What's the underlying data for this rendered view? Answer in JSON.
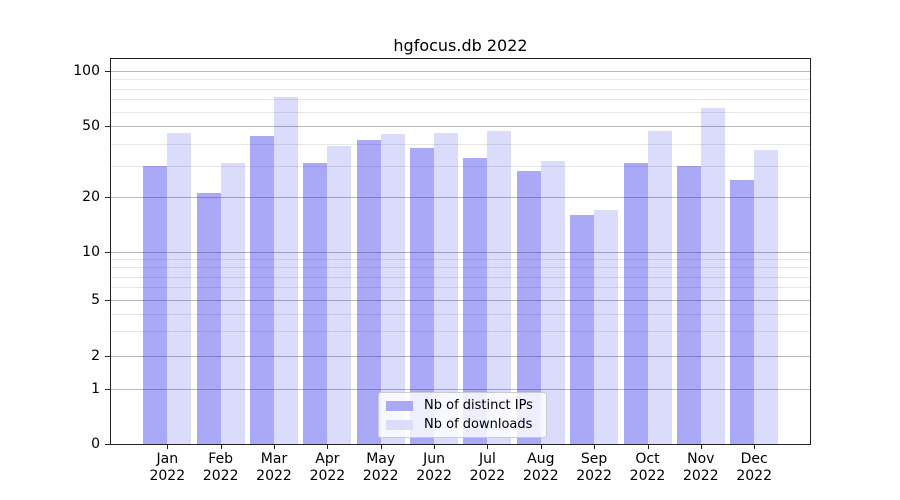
{
  "chart_data": {
    "type": "bar",
    "title": "hgfocus.db 2022",
    "x_axis": {
      "months": [
        "Jan",
        "Feb",
        "Mar",
        "Apr",
        "May",
        "Jun",
        "Jul",
        "Aug",
        "Sep",
        "Oct",
        "Nov",
        "Dec"
      ],
      "year": "2022"
    },
    "y_axis": {
      "scale": "symlog",
      "ticks": [
        100,
        50,
        20,
        10,
        5,
        2,
        1,
        0
      ],
      "minor_ticks": [
        90,
        80,
        70,
        60,
        40,
        30,
        9,
        8,
        7,
        6,
        4,
        3
      ],
      "range": [
        0,
        115
      ]
    },
    "series": [
      {
        "name": "Nb of distinct IPs",
        "values": [
          30,
          21,
          44,
          31,
          42,
          38,
          33,
          28,
          16,
          31,
          30,
          25
        ],
        "color": "rgba(30,30,235,0.38)",
        "swatch_color": "#a9a9f6",
        "key": "ips"
      },
      {
        "name": "Nb of downloads",
        "values": [
          46,
          31,
          72,
          39,
          45,
          46,
          47,
          32,
          17,
          47,
          63,
          37
        ],
        "color": "rgba(30,30,235,0.16)",
        "swatch_color": "#dcdcfb",
        "key": "downloads"
      }
    ],
    "grid": {
      "enabled": true,
      "major_color": "#b8b8b8",
      "minor_color": "#e6e6e6"
    },
    "legend_position": "lower center"
  }
}
